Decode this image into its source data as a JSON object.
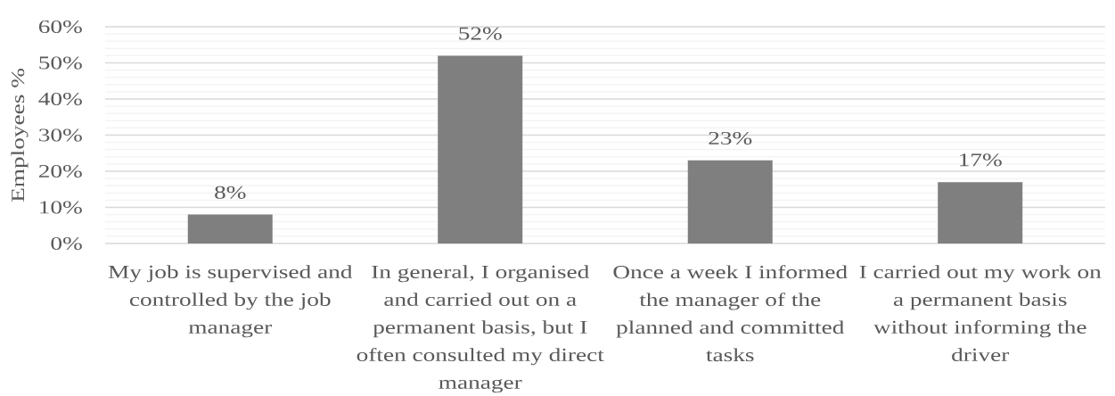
{
  "chart_data": {
    "type": "bar",
    "ylabel": "Employees %",
    "categories": [
      "My job is supervised and controlled by the job manager",
      "In general, I organised and carried out on a permanent basis, but I often consulted my direct manager",
      "Once a week I informed the manager of the planned and committed tasks",
      "I carried out my work on a permanent basis without informing the driver"
    ],
    "values": [
      8,
      52,
      23,
      17
    ],
    "value_labels": [
      "8%",
      "52%",
      "23%",
      "17%"
    ],
    "color": "#7f7f7f",
    "ylim": [
      0,
      60
    ],
    "yticks": [
      {
        "value": 0,
        "label": "0%"
      },
      {
        "value": 2,
        "label": null
      },
      {
        "value": 4,
        "label": null
      },
      {
        "value": 6,
        "label": null
      },
      {
        "value": 8,
        "label": null
      },
      {
        "value": 10,
        "label": "10%"
      },
      {
        "value": 12,
        "label": null
      },
      {
        "value": 14,
        "label": null
      },
      {
        "value": 16,
        "label": null
      },
      {
        "value": 18,
        "label": null
      },
      {
        "value": 20,
        "label": "20%"
      },
      {
        "value": 22,
        "label": null
      },
      {
        "value": 24,
        "label": null
      },
      {
        "value": 26,
        "label": null
      },
      {
        "value": 28,
        "label": null
      },
      {
        "value": 30,
        "label": "30%"
      },
      {
        "value": 32,
        "label": null
      },
      {
        "value": 34,
        "label": null
      },
      {
        "value": 36,
        "label": null
      },
      {
        "value": 38,
        "label": null
      },
      {
        "value": 40,
        "label": "40%"
      },
      {
        "value": 42,
        "label": null
      },
      {
        "value": 44,
        "label": null
      },
      {
        "value": 46,
        "label": null
      },
      {
        "value": 48,
        "label": null
      },
      {
        "value": 50,
        "label": "50%"
      },
      {
        "value": 52,
        "label": null
      },
      {
        "value": 54,
        "label": null
      },
      {
        "value": 56,
        "label": null
      },
      {
        "value": 58,
        "label": null
      },
      {
        "value": 60,
        "label": "60%"
      }
    ],
    "grid": "y"
  }
}
